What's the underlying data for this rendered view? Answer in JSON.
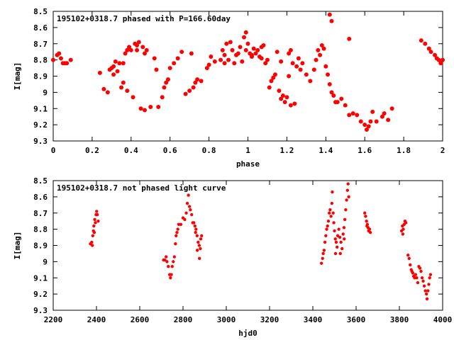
{
  "chart_data": [
    {
      "type": "scatter",
      "title": "195102+0318.7 phased with P=166.60day",
      "xlabel": "phase",
      "ylabel": "I[mag]",
      "xlim": [
        0,
        2
      ],
      "ylim": [
        8.5,
        9.3
      ],
      "y_inverted": true,
      "grid": false,
      "x_ticks": [
        "0",
        "0.2",
        "0.4",
        "0.6",
        "0.8",
        "1",
        "1.2",
        "1.4",
        "1.6",
        "1.8",
        "2"
      ],
      "y_ticks": [
        "8.5",
        "8.6",
        "8.7",
        "8.8",
        "8.9",
        "9",
        "9.1",
        "9.2",
        "9.3"
      ],
      "marker_color": "#ff0000",
      "points": [
        [
          0.0,
          8.8
        ],
        [
          0.02,
          8.77
        ],
        [
          0.03,
          8.76
        ],
        [
          0.04,
          8.79
        ],
        [
          0.05,
          8.82
        ],
        [
          0.06,
          8.82
        ],
        [
          0.07,
          8.82
        ],
        [
          0.09,
          8.8
        ],
        [
          0.24,
          8.88
        ],
        [
          0.26,
          8.98
        ],
        [
          0.28,
          9.0
        ],
        [
          0.29,
          8.86
        ],
        [
          0.3,
          8.85
        ],
        [
          0.31,
          8.89
        ],
        [
          0.31,
          8.84
        ],
        [
          0.32,
          8.81
        ],
        [
          0.33,
          8.87
        ],
        [
          0.34,
          8.82
        ],
        [
          0.35,
          8.97
        ],
        [
          0.36,
          8.82
        ],
        [
          0.37,
          8.76
        ],
        [
          0.38,
          8.99
        ],
        [
          0.38,
          8.74
        ],
        [
          0.39,
          8.72
        ],
        [
          0.4,
          8.74
        ],
        [
          0.41,
          9.03
        ],
        [
          0.42,
          8.7
        ],
        [
          0.43,
          8.71
        ],
        [
          0.44,
          8.69
        ],
        [
          0.45,
          9.1
        ],
        [
          0.46,
          8.72
        ],
        [
          0.47,
          9.11
        ],
        [
          0.48,
          8.74
        ],
        [
          0.5,
          9.09
        ],
        [
          0.52,
          8.79
        ],
        [
          0.53,
          8.86
        ],
        [
          0.54,
          9.09
        ],
        [
          0.56,
          9.03
        ],
        [
          0.57,
          8.97
        ],
        [
          0.58,
          8.94
        ],
        [
          0.59,
          8.92
        ],
        [
          0.6,
          8.85
        ],
        [
          0.62,
          8.82
        ],
        [
          0.64,
          8.79
        ],
        [
          0.66,
          8.75
        ],
        [
          0.68,
          9.01
        ],
        [
          0.7,
          8.99
        ],
        [
          0.71,
          8.76
        ],
        [
          0.72,
          8.97
        ],
        [
          0.73,
          8.94
        ],
        [
          0.74,
          8.92
        ],
        [
          0.76,
          8.93
        ],
        [
          0.79,
          8.85
        ],
        [
          0.8,
          8.83
        ],
        [
          0.81,
          8.78
        ],
        [
          0.83,
          8.81
        ],
        [
          0.86,
          8.8
        ],
        [
          0.87,
          8.74
        ],
        [
          0.88,
          8.77
        ],
        [
          0.89,
          8.7
        ],
        [
          0.9,
          8.8
        ],
        [
          0.91,
          8.69
        ],
        [
          0.92,
          8.74
        ],
        [
          0.93,
          8.82
        ],
        [
          0.94,
          8.77
        ],
        [
          0.95,
          8.76
        ],
        [
          0.96,
          8.72
        ],
        [
          0.97,
          8.81
        ],
        [
          0.98,
          8.66
        ],
        [
          0.99,
          8.63
        ],
        [
          0.99,
          8.74
        ],
        [
          1.0,
          8.7
        ],
        [
          1.01,
          8.76
        ],
        [
          1.02,
          8.78
        ],
        [
          1.03,
          8.73
        ],
        [
          1.04,
          8.76
        ],
        [
          1.05,
          8.74
        ],
        [
          1.06,
          8.78
        ],
        [
          1.07,
          8.72
        ],
        [
          1.08,
          8.71
        ],
        [
          1.09,
          8.82
        ],
        [
          1.1,
          8.8
        ],
        [
          1.11,
          8.97
        ],
        [
          1.12,
          8.93
        ],
        [
          1.13,
          8.91
        ],
        [
          1.14,
          8.89
        ],
        [
          1.15,
          8.75
        ],
        [
          1.16,
          8.99
        ],
        [
          1.17,
          9.04
        ],
        [
          1.18,
          9.02
        ],
        [
          1.19,
          9.06
        ],
        [
          1.2,
          9.03
        ],
        [
          1.21,
          8.9
        ],
        [
          1.22,
          9.08
        ],
        [
          1.23,
          8.82
        ],
        [
          1.24,
          9.07
        ],
        [
          1.25,
          8.84
        ],
        [
          1.26,
          8.79
        ],
        [
          1.27,
          8.86
        ],
        [
          1.28,
          8.82
        ],
        [
          1.3,
          8.89
        ],
        [
          1.32,
          8.93
        ],
        [
          1.34,
          8.86
        ],
        [
          1.35,
          8.8
        ],
        [
          1.36,
          8.74
        ],
        [
          1.37,
          8.77
        ],
        [
          1.38,
          8.71
        ],
        [
          1.39,
          8.73
        ],
        [
          1.4,
          8.84
        ],
        [
          1.41,
          8.89
        ],
        [
          1.42,
          8.52
        ],
        [
          1.43,
          8.56
        ],
        [
          1.44,
          9.02
        ],
        [
          1.45,
          9.06
        ],
        [
          1.46,
          9.06
        ],
        [
          1.48,
          9.04
        ],
        [
          1.5,
          9.08
        ],
        [
          1.52,
          9.14
        ],
        [
          1.54,
          9.13
        ],
        [
          1.56,
          9.14
        ],
        [
          1.58,
          9.18
        ],
        [
          1.6,
          9.2
        ],
        [
          1.61,
          9.23
        ],
        [
          1.62,
          9.21
        ],
        [
          1.63,
          9.18
        ],
        [
          1.64,
          9.12
        ],
        [
          1.66,
          9.18
        ],
        [
          1.69,
          9.15
        ],
        [
          1.7,
          9.13
        ],
        [
          1.72,
          9.17
        ],
        [
          1.74,
          9.1
        ],
        [
          1.89,
          8.68
        ],
        [
          1.91,
          8.7
        ],
        [
          1.93,
          8.73
        ],
        [
          1.94,
          8.75
        ],
        [
          1.96,
          8.77
        ],
        [
          1.97,
          8.79
        ],
        [
          1.98,
          8.8
        ],
        [
          1.99,
          8.82
        ],
        [
          2.0,
          8.8
        ],
        [
          1.42,
          8.95
        ],
        [
          1.43,
          9.0
        ],
        [
          1.52,
          8.67
        ],
        [
          1.22,
          8.74
        ],
        [
          1.21,
          8.76
        ],
        [
          1.17,
          8.81
        ],
        [
          1.02,
          8.77
        ],
        [
          0.47,
          8.76
        ],
        [
          0.43,
          8.74
        ],
        [
          0.36,
          8.94
        ],
        [
          0.88,
          8.82
        ],
        [
          1.07,
          8.79
        ]
      ]
    },
    {
      "type": "scatter",
      "title": "195102+0318.7 not phased light curve",
      "xlabel": "hjd0",
      "ylabel": "I[mag]",
      "xlim": [
        2200,
        4000
      ],
      "ylim": [
        8.5,
        9.3
      ],
      "y_inverted": true,
      "grid": false,
      "x_ticks": [
        "2200",
        "2400",
        "2600",
        "2800",
        "3000",
        "3200",
        "3400",
        "3600",
        "3800",
        "4000"
      ],
      "y_ticks": [
        "8.5",
        "8.6",
        "8.7",
        "8.8",
        "8.9",
        "9",
        "9.1",
        "9.2",
        "9.3"
      ],
      "marker_color": "#ff0000",
      "points": [
        [
          2372,
          8.89
        ],
        [
          2378,
          8.88
        ],
        [
          2383,
          8.84
        ],
        [
          2386,
          8.81
        ],
        [
          2388,
          8.78
        ],
        [
          2392,
          8.74
        ],
        [
          2395,
          8.76
        ],
        [
          2398,
          8.71
        ],
        [
          2401,
          8.69
        ],
        [
          2404,
          8.71
        ],
        [
          2408,
          8.75
        ],
        [
          2381,
          8.9
        ],
        [
          2390,
          8.82
        ],
        [
          2710,
          8.99
        ],
        [
          2716,
          8.99
        ],
        [
          2722,
          8.97
        ],
        [
          2726,
          9.0
        ],
        [
          2732,
          9.03
        ],
        [
          2738,
          9.08
        ],
        [
          2742,
          9.1
        ],
        [
          2746,
          9.08
        ],
        [
          2750,
          9.03
        ],
        [
          2755,
          9.0
        ],
        [
          2760,
          8.97
        ],
        [
          2765,
          8.89
        ],
        [
          2768,
          8.84
        ],
        [
          2772,
          8.82
        ],
        [
          2776,
          8.8
        ],
        [
          2780,
          8.77
        ],
        [
          2790,
          8.77
        ],
        [
          2800,
          8.73
        ],
        [
          2808,
          8.74
        ],
        [
          2815,
          8.7
        ],
        [
          2820,
          8.64
        ],
        [
          2825,
          8.59
        ],
        [
          2830,
          8.66
        ],
        [
          2834,
          8.68
        ],
        [
          2840,
          8.71
        ],
        [
          2845,
          8.76
        ],
        [
          2850,
          8.76
        ],
        [
          2855,
          8.78
        ],
        [
          2860,
          8.8
        ],
        [
          2865,
          8.84
        ],
        [
          2870,
          8.88
        ],
        [
          2875,
          8.9
        ],
        [
          2880,
          8.92
        ],
        [
          2882,
          8.86
        ],
        [
          2886,
          8.84
        ],
        [
          2876,
          8.98
        ],
        [
          2866,
          8.93
        ],
        [
          2858,
          8.82
        ],
        [
          3440,
          9.01
        ],
        [
          3445,
          8.98
        ],
        [
          3448,
          8.95
        ],
        [
          3452,
          8.93
        ],
        [
          3456,
          8.88
        ],
        [
          3460,
          8.84
        ],
        [
          3464,
          8.8
        ],
        [
          3468,
          8.78
        ],
        [
          3472,
          8.75
        ],
        [
          3476,
          8.7
        ],
        [
          3480,
          8.68
        ],
        [
          3484,
          8.72
        ],
        [
          3488,
          8.64
        ],
        [
          3490,
          8.57
        ],
        [
          3494,
          8.7
        ],
        [
          3497,
          8.76
        ],
        [
          3500,
          8.81
        ],
        [
          3504,
          8.86
        ],
        [
          3508,
          8.88
        ],
        [
          3512,
          8.91
        ],
        [
          3515,
          8.84
        ],
        [
          3520,
          8.8
        ],
        [
          3525,
          8.85
        ],
        [
          3530,
          8.88
        ],
        [
          3535,
          8.92
        ],
        [
          3540,
          8.83
        ],
        [
          3544,
          8.79
        ],
        [
          3548,
          8.74
        ],
        [
          3552,
          8.68
        ],
        [
          3556,
          8.62
        ],
        [
          3560,
          8.56
        ],
        [
          3563,
          8.52
        ],
        [
          3566,
          8.6
        ],
        [
          3505,
          8.95
        ],
        [
          3527,
          8.95
        ],
        [
          3545,
          8.86
        ],
        [
          3640,
          8.7
        ],
        [
          3644,
          8.72
        ],
        [
          3648,
          8.75
        ],
        [
          3650,
          8.78
        ],
        [
          3655,
          8.79
        ],
        [
          3658,
          8.81
        ],
        [
          3662,
          8.8
        ],
        [
          3666,
          8.82
        ],
        [
          3652,
          8.77
        ],
        [
          3810,
          8.81
        ],
        [
          3814,
          8.78
        ],
        [
          3818,
          8.8
        ],
        [
          3822,
          8.77
        ],
        [
          3826,
          8.75
        ],
        [
          3830,
          8.76
        ],
        [
          3816,
          8.83
        ],
        [
          3840,
          8.96
        ],
        [
          3845,
          8.98
        ],
        [
          3850,
          9.02
        ],
        [
          3855,
          9.05
        ],
        [
          3858,
          9.06
        ],
        [
          3862,
          9.07
        ],
        [
          3866,
          9.09
        ],
        [
          3870,
          9.1
        ],
        [
          3875,
          9.08
        ],
        [
          3880,
          9.1
        ],
        [
          3885,
          9.13
        ],
        [
          3890,
          9.03
        ],
        [
          3895,
          9.04
        ],
        [
          3900,
          9.06
        ],
        [
          3905,
          9.1
        ],
        [
          3910,
          9.12
        ],
        [
          3915,
          9.15
        ],
        [
          3920,
          9.18
        ],
        [
          3925,
          9.2
        ],
        [
          3928,
          9.23
        ],
        [
          3932,
          9.18
        ],
        [
          3936,
          9.14
        ],
        [
          3940,
          9.1
        ],
        [
          3944,
          9.08
        ]
      ]
    }
  ]
}
